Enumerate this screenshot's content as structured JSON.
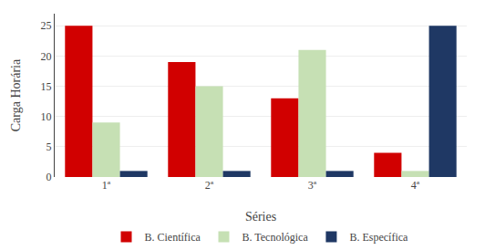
{
  "chart_data": {
    "type": "bar",
    "categories": [
      "1ª",
      "2ª",
      "3ª",
      "4ª"
    ],
    "series": [
      {
        "name": "B. Científica",
        "color": "#d10000",
        "values": [
          25,
          19,
          13,
          4
        ]
      },
      {
        "name": "B. Tecnológica",
        "color": "#c6e0b4",
        "values": [
          9,
          15,
          21,
          1
        ]
      },
      {
        "name": "B. Específica",
        "color": "#1f3864",
        "values": [
          1,
          1,
          1,
          25
        ]
      }
    ],
    "xlabel": "Séries",
    "ylabel": "Carga Horária",
    "ylim": [
      0,
      27
    ],
    "yticks": [
      0,
      5,
      10,
      15,
      20,
      25
    ],
    "grid": true,
    "legend": "bottom"
  }
}
